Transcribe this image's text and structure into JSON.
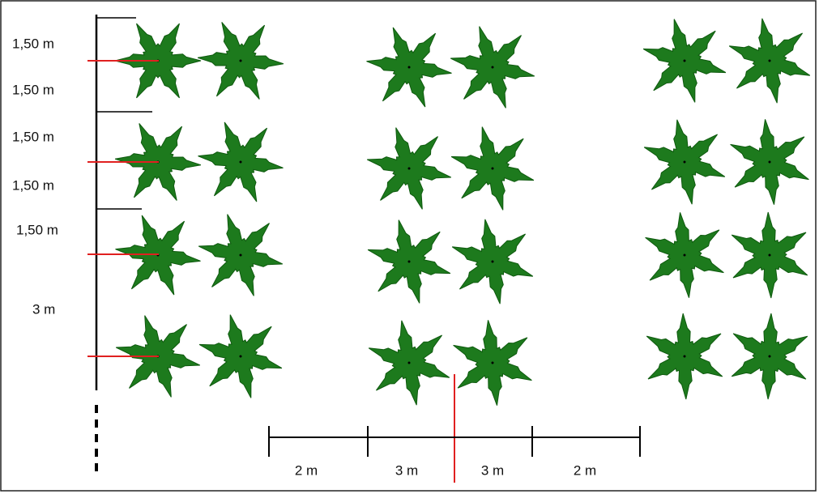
{
  "vertical_labels": [
    "1,50 m",
    "1,50 m",
    "1,50 m",
    "1,50 m",
    "1,50 m",
    "3 m"
  ],
  "horizontal_labels": [
    "2 m",
    "3 m",
    "3 m",
    "2 m"
  ]
}
